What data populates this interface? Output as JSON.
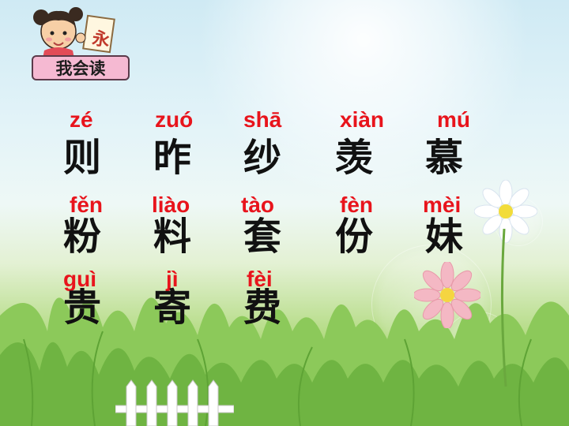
{
  "header": {
    "badge_label": "我会读",
    "card_char": "永",
    "mascot_icon": "girl-reading-icon"
  },
  "rows": [
    [
      {
        "pinyin": "zé",
        "char": "则"
      },
      {
        "pinyin": "zuó",
        "char": "昨"
      },
      {
        "pinyin": "shā",
        "char": "纱"
      },
      {
        "pinyin": "xiàn",
        "char": "羡"
      },
      {
        "pinyin": "mú",
        "char": "慕"
      }
    ],
    [
      {
        "pinyin": "fěn",
        "char": "粉"
      },
      {
        "pinyin": "liào",
        "char": "料"
      },
      {
        "pinyin": "tào",
        "char": "套"
      },
      {
        "pinyin": "fèn",
        "char": "份"
      },
      {
        "pinyin": "mèi",
        "char": "妹"
      }
    ],
    [
      {
        "pinyin": "guì",
        "char": "贵"
      },
      {
        "pinyin": "jì",
        "char": "寄"
      },
      {
        "pinyin": "fèi",
        "char": "费"
      }
    ]
  ],
  "decor": {
    "flower_icons": [
      "white-daisy-icon",
      "pink-daisy-icon"
    ],
    "fence_icon": "picket-fence-icon"
  },
  "colors": {
    "pinyin": "#e8141c",
    "hanzi": "#111111",
    "badge_bg": "#f5b9d2"
  }
}
